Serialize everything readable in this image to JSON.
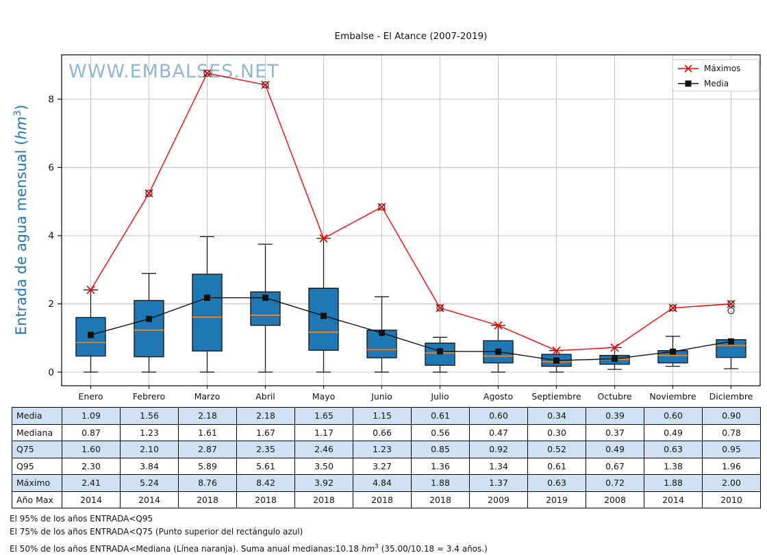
{
  "title": "Embalse - El Atance (2007-2019)",
  "watermark": "WWW.EMBALSES.NET",
  "legend": {
    "items": [
      {
        "label": "Máximos"
      },
      {
        "label": "Media"
      }
    ]
  },
  "y_axis": {
    "label_pre": "Entrada de agua mensual (",
    "label_math": "hm",
    "label_sup": "3",
    "label_post": ")",
    "ticks": [
      "0",
      "2",
      "4",
      "6",
      "8"
    ]
  },
  "months": [
    "Enero",
    "Febrero",
    "Marzo",
    "Abril",
    "Mayo",
    "Junio",
    "Julio",
    "Agosto",
    "Septiembre",
    "Octubre",
    "Noviembre",
    "Diciembre"
  ],
  "chart_data": {
    "type": "boxplot-with-lines",
    "title": "Embalse - El Atance (2007-2019)",
    "categories": [
      "Enero",
      "Febrero",
      "Marzo",
      "Abril",
      "Mayo",
      "Junio",
      "Julio",
      "Agosto",
      "Septiembre",
      "Octubre",
      "Noviembre",
      "Diciembre"
    ],
    "ylabel": "Entrada de agua mensual (hm³)",
    "ylim": [
      -0.4,
      9.3
    ],
    "yticks": [
      0,
      2,
      4,
      6,
      8
    ],
    "grid": true,
    "legend_position": "upper right",
    "boxes": [
      {
        "q1": 0.47,
        "median": 0.87,
        "q3": 1.6,
        "whisker_low": 0.0,
        "whisker_high": 2.41,
        "fliers": []
      },
      {
        "q1": 0.45,
        "median": 1.23,
        "q3": 2.1,
        "whisker_low": 0.0,
        "whisker_high": 2.89,
        "fliers": [
          5.24
        ]
      },
      {
        "q1": 0.62,
        "median": 1.61,
        "q3": 2.87,
        "whisker_low": 0.0,
        "whisker_high": 3.97,
        "fliers": [
          8.76
        ]
      },
      {
        "q1": 1.37,
        "median": 1.67,
        "q3": 2.35,
        "whisker_low": 0.0,
        "whisker_high": 3.75,
        "fliers": [
          8.42
        ]
      },
      {
        "q1": 0.64,
        "median": 1.17,
        "q3": 2.46,
        "whisker_low": 0.0,
        "whisker_high": 3.92,
        "fliers": []
      },
      {
        "q1": 0.42,
        "median": 0.66,
        "q3": 1.23,
        "whisker_low": 0.0,
        "whisker_high": 2.21,
        "fliers": [
          4.84
        ]
      },
      {
        "q1": 0.2,
        "median": 0.56,
        "q3": 0.85,
        "whisker_low": 0.0,
        "whisker_high": 1.02,
        "fliers": [
          1.88
        ]
      },
      {
        "q1": 0.27,
        "median": 0.47,
        "q3": 0.92,
        "whisker_low": 0.0,
        "whisker_high": 1.37,
        "fliers": []
      },
      {
        "q1": 0.17,
        "median": 0.3,
        "q3": 0.52,
        "whisker_low": 0.0,
        "whisker_high": 0.63,
        "fliers": []
      },
      {
        "q1": 0.23,
        "median": 0.37,
        "q3": 0.49,
        "whisker_low": 0.08,
        "whisker_high": 0.72,
        "fliers": []
      },
      {
        "q1": 0.27,
        "median": 0.49,
        "q3": 0.63,
        "whisker_low": 0.17,
        "whisker_high": 1.05,
        "fliers": [
          1.88
        ]
      },
      {
        "q1": 0.43,
        "median": 0.78,
        "q3": 0.95,
        "whisker_low": 0.1,
        "whisker_high": 0.95,
        "fliers": [
          1.8,
          2.0
        ]
      }
    ],
    "series": [
      {
        "name": "Máximos",
        "marker": "x",
        "color": "#ff0000",
        "values": [
          2.41,
          5.24,
          8.76,
          8.42,
          3.92,
          4.84,
          1.88,
          1.37,
          0.63,
          0.72,
          1.88,
          2.0
        ]
      },
      {
        "name": "Media",
        "marker": "square",
        "color": "#111111",
        "values": [
          1.09,
          1.56,
          2.18,
          2.18,
          1.65,
          1.15,
          0.61,
          0.6,
          0.34,
          0.39,
          0.6,
          0.9
        ]
      }
    ]
  },
  "table": {
    "rows": [
      {
        "label": "Media",
        "shaded": true,
        "values": [
          "1.09",
          "1.56",
          "2.18",
          "2.18",
          "1.65",
          "1.15",
          "0.61",
          "0.60",
          "0.34",
          "0.39",
          "0.60",
          "0.90"
        ]
      },
      {
        "label": "Mediana",
        "shaded": false,
        "values": [
          "0.87",
          "1.23",
          "1.61",
          "1.67",
          "1.17",
          "0.66",
          "0.56",
          "0.47",
          "0.30",
          "0.37",
          "0.49",
          "0.78"
        ]
      },
      {
        "label": "Q75",
        "shaded": true,
        "values": [
          "1.60",
          "2.10",
          "2.87",
          "2.35",
          "2.46",
          "1.23",
          "0.85",
          "0.92",
          "0.52",
          "0.49",
          "0.63",
          "0.95"
        ]
      },
      {
        "label": "Q95",
        "shaded": false,
        "values": [
          "2.30",
          "3.84",
          "5.89",
          "5.61",
          "3.50",
          "3.27",
          "1.36",
          "1.34",
          "0.61",
          "0.67",
          "1.38",
          "1.96"
        ]
      },
      {
        "label": "Máximo",
        "shaded": true,
        "values": [
          "2.41",
          "5.24",
          "8.76",
          "8.42",
          "3.92",
          "4.84",
          "1.88",
          "1.37",
          "0.63",
          "0.72",
          "1.88",
          "2.00"
        ]
      },
      {
        "label": "Año Max",
        "shaded": false,
        "values": [
          "2014",
          "2014",
          "2018",
          "2018",
          "2018",
          "2018",
          "2018",
          "2009",
          "2019",
          "2008",
          "2014",
          "2010"
        ]
      }
    ]
  },
  "notes": [
    {
      "text": "El 95% de los años ENTRADA<Q95"
    },
    {
      "text": "El 75% de los años ENTRADA<Q75 (Punto superior del rectángulo azul)"
    },
    {
      "pre": "El 50% de los años ENTRADA<Mediana (Línea naranja). Suma anual medianas:10.18 ",
      "math": "hm",
      "sup": "3",
      "post": " (35.00/10.18 = 3.4 años.)"
    }
  ],
  "colors": {
    "box_fill": "#1f77b4",
    "box_edge": "#1a1a1a",
    "median_line": "#ff7f0e",
    "max_line": "#ff0000",
    "mean_line": "#111111",
    "grid": "#bdbdbd",
    "table_shade": "#cfe2f3",
    "watermark": "#85afcb",
    "ylabel": "#1f77b4",
    "legend_border": "#c4c4c4",
    "spine": "#000000"
  }
}
